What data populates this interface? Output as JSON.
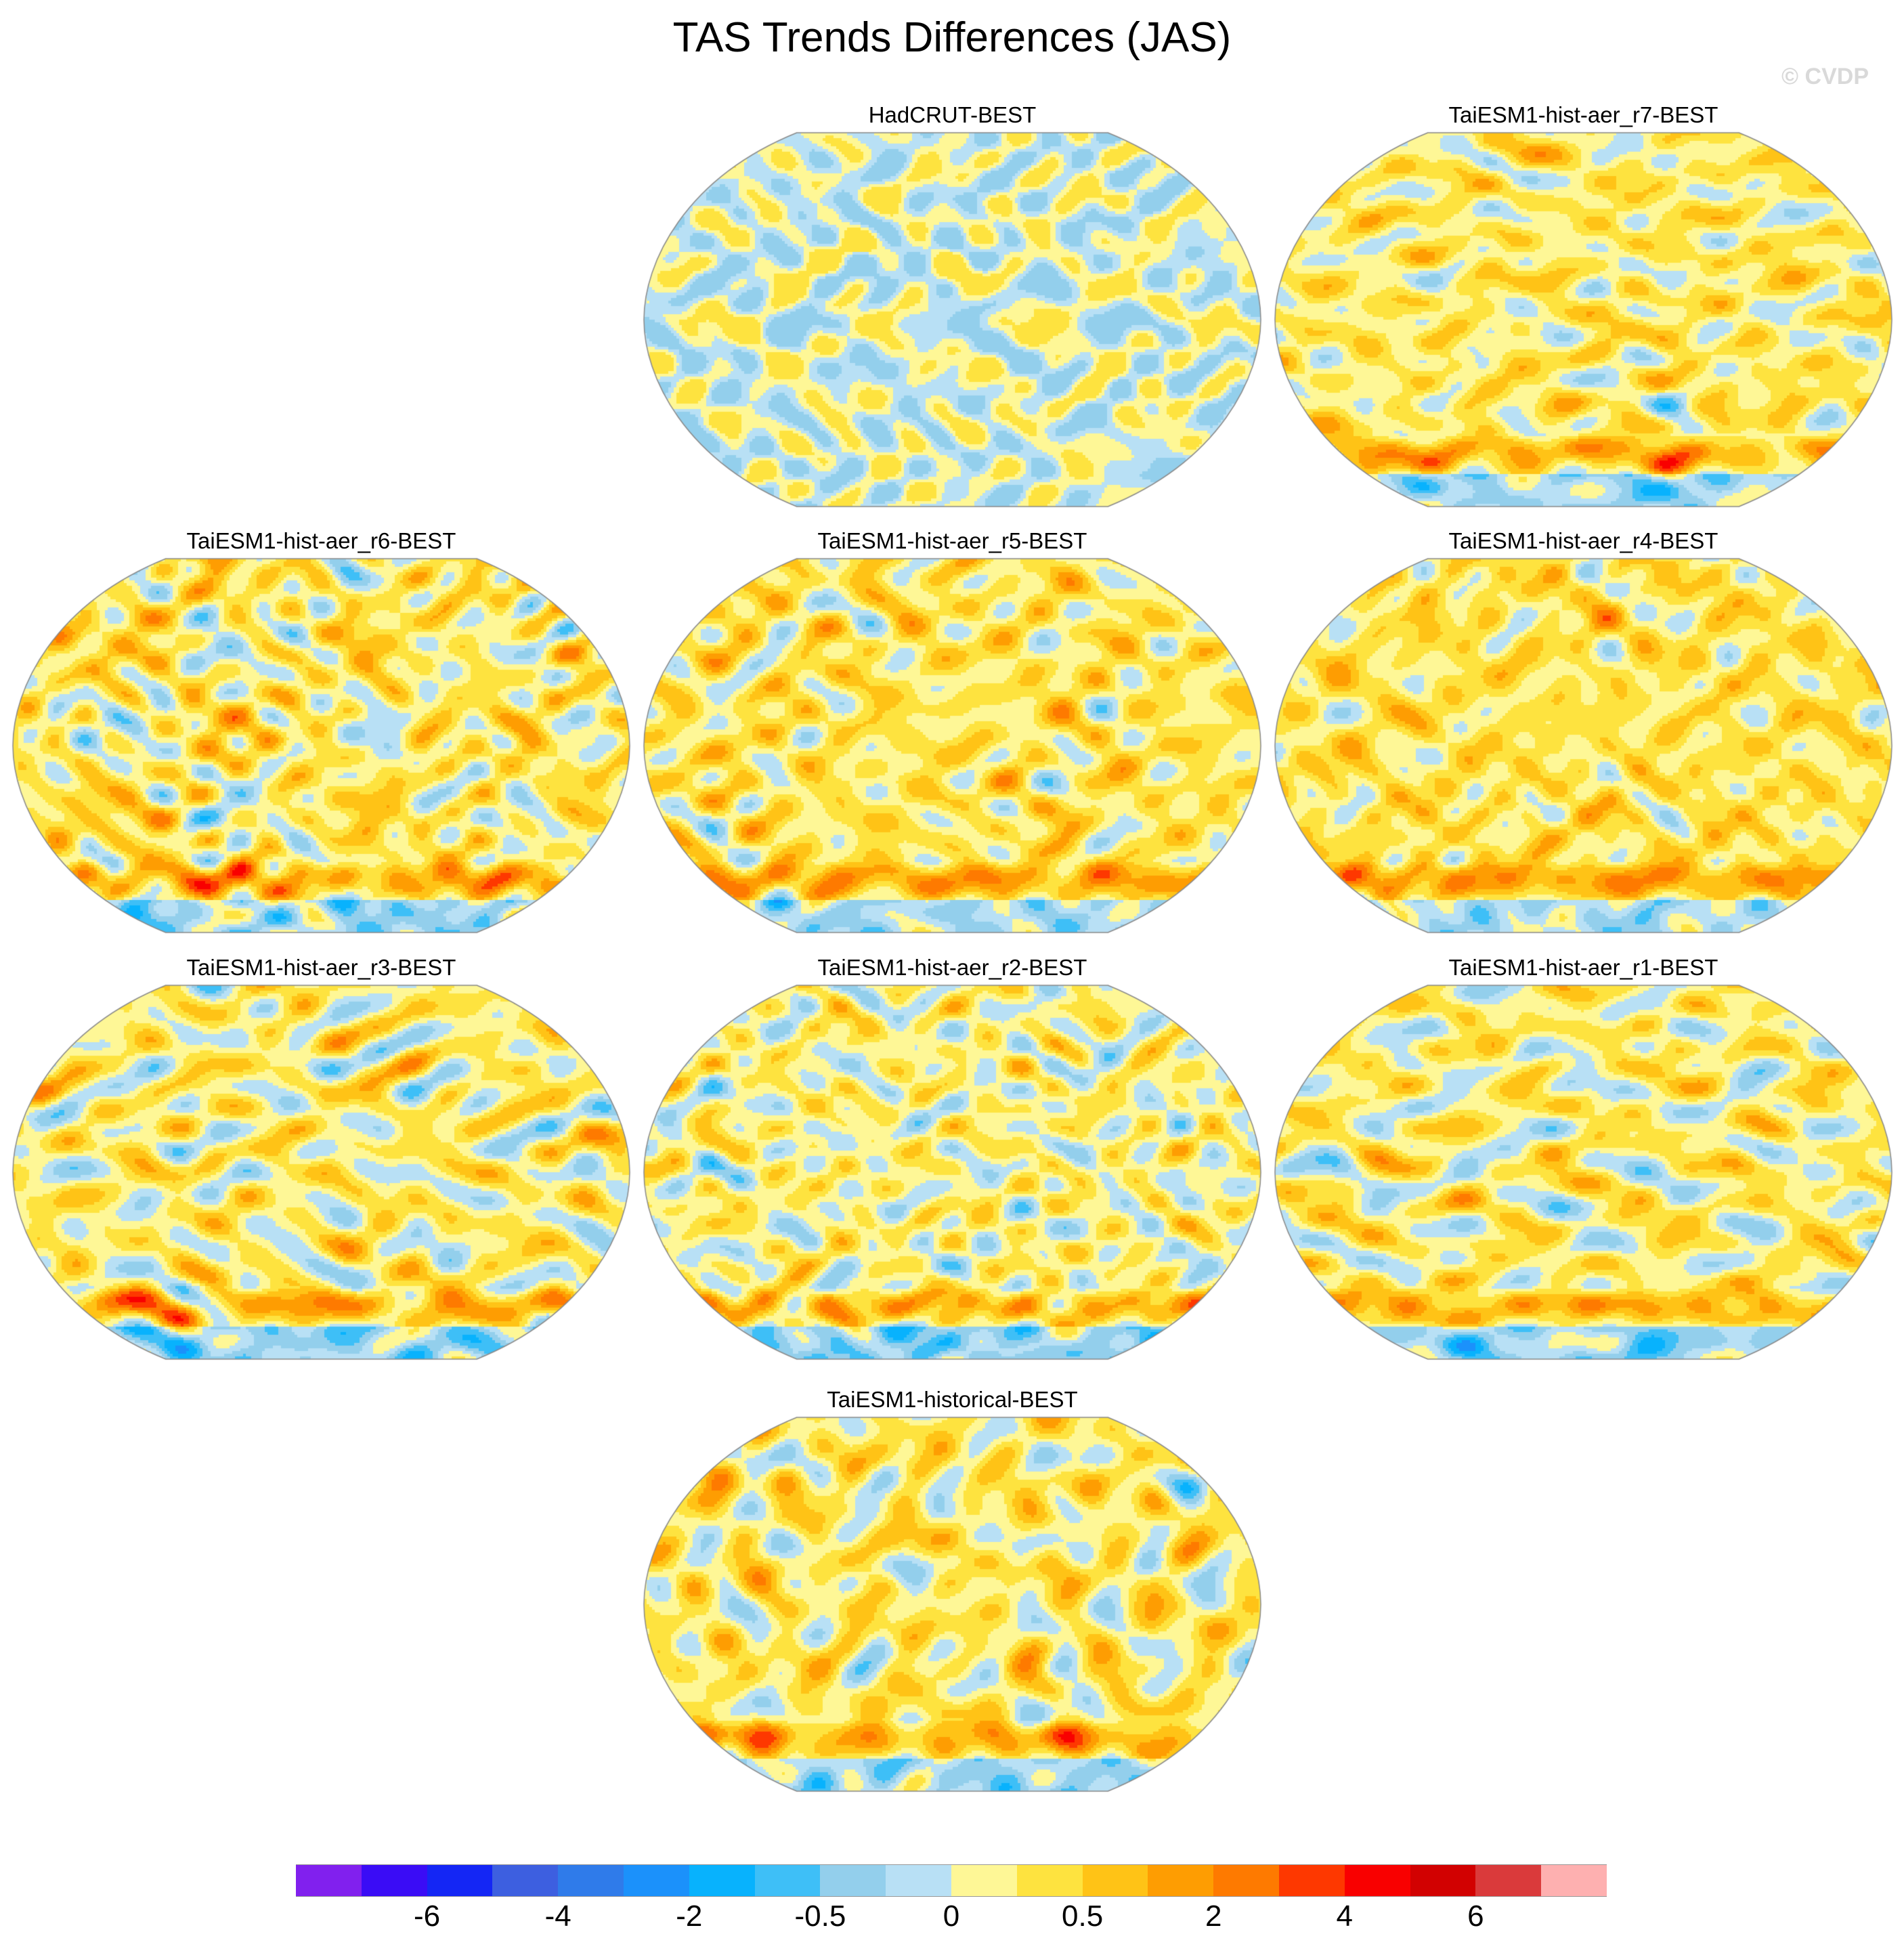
{
  "title": "TAS Trends Differences (JAS)",
  "watermark": "© CVDP",
  "chart_data": {
    "type": "heatmap",
    "title": "TAS Trends Differences (JAS)",
    "panels": [
      {
        "title": "HadCRUT-BEST",
        "bias": 0.0,
        "seed": 3
      },
      {
        "title": "TaiESM1-hist-aer_r7-BEST",
        "bias": 1.0,
        "seed": 17
      },
      {
        "title": "TaiESM1-hist-aer_r6-BEST",
        "bias": 1.0,
        "seed": 29
      },
      {
        "title": "TaiESM1-hist-aer_r5-BEST",
        "bias": 1.2,
        "seed": 41
      },
      {
        "title": "TaiESM1-hist-aer_r4-BEST",
        "bias": 1.3,
        "seed": 53
      },
      {
        "title": "TaiESM1-hist-aer_r3-BEST",
        "bias": 0.8,
        "seed": 67
      },
      {
        "title": "TaiESM1-hist-aer_r2-BEST",
        "bias": 0.6,
        "seed": 79
      },
      {
        "title": "TaiESM1-hist-aer_r1-BEST",
        "bias": 0.8,
        "seed": 97
      },
      {
        "title": "TaiESM1-historical-BEST",
        "bias": 1.0,
        "seed": 113
      }
    ],
    "colorbar": {
      "colors": [
        "#8120ee",
        "#3a0cf6",
        "#1426f5",
        "#3d5fe0",
        "#2f7bea",
        "#1b91fb",
        "#08b2fd",
        "#3ebff7",
        "#93cfec",
        "#b8e0f5",
        "#fef796",
        "#fee33f",
        "#ffc316",
        "#fe9d02",
        "#fe7a00",
        "#fe3800",
        "#f90000",
        "#d20101",
        "#da3a3b",
        "#feb0b0"
      ],
      "labels": [
        "-6",
        "-4",
        "-2",
        "-0.5",
        "0",
        "0.5",
        "2",
        "4",
        "6"
      ],
      "label_boundaries": [
        2,
        4,
        6,
        8,
        10,
        12,
        14,
        16,
        18
      ],
      "placement": "bottom"
    }
  }
}
